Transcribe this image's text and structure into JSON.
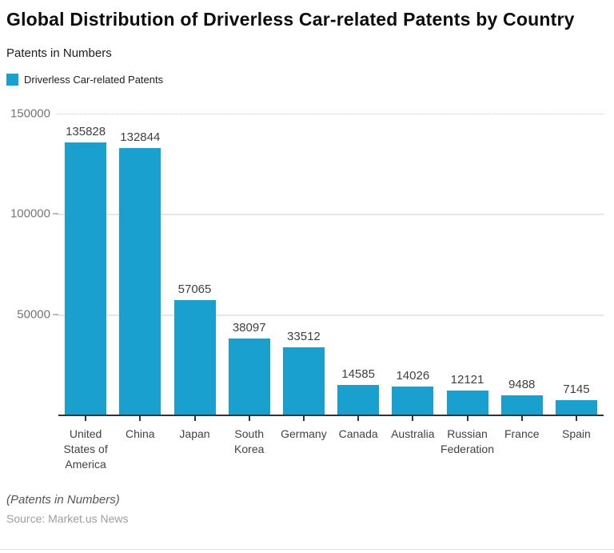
{
  "header": {
    "title": "Global Distribution of Driverless Car-related Patents by Country",
    "subtitle": "Patents in Numbers"
  },
  "legend": {
    "items": [
      {
        "label": "Driverless Car-related Patents",
        "color": "#1aa0ce"
      }
    ]
  },
  "chart_data": {
    "type": "bar",
    "title": "Global Distribution of Driverless Car-related Patents by Country",
    "subtitle": "Patents in Numbers",
    "legend": [
      "Driverless Car-related Patents"
    ],
    "categories": [
      "United States of America",
      "China",
      "Japan",
      "South Korea",
      "Germany",
      "Canada",
      "Australia",
      "Russian Federation",
      "France",
      "Spain"
    ],
    "values": [
      135828,
      132844,
      57065,
      38097,
      33512,
      14585,
      14026,
      12121,
      9488,
      7145
    ],
    "xlabel": "",
    "ylabel": "Patents in Numbers",
    "ylim": [
      0,
      150000
    ],
    "yticks": [
      50000,
      100000,
      150000
    ],
    "grid": true,
    "legend_position": "top-left",
    "bar_color": "#1aa0ce"
  },
  "footer": {
    "note": "(Patents in Numbers)",
    "source": "Source: Market.us News"
  },
  "colors": {
    "bar": "#1aa0ce",
    "axis": "#333333",
    "grid_solid": "#e6e6e6",
    "grid_dotted": "#cccccc"
  }
}
